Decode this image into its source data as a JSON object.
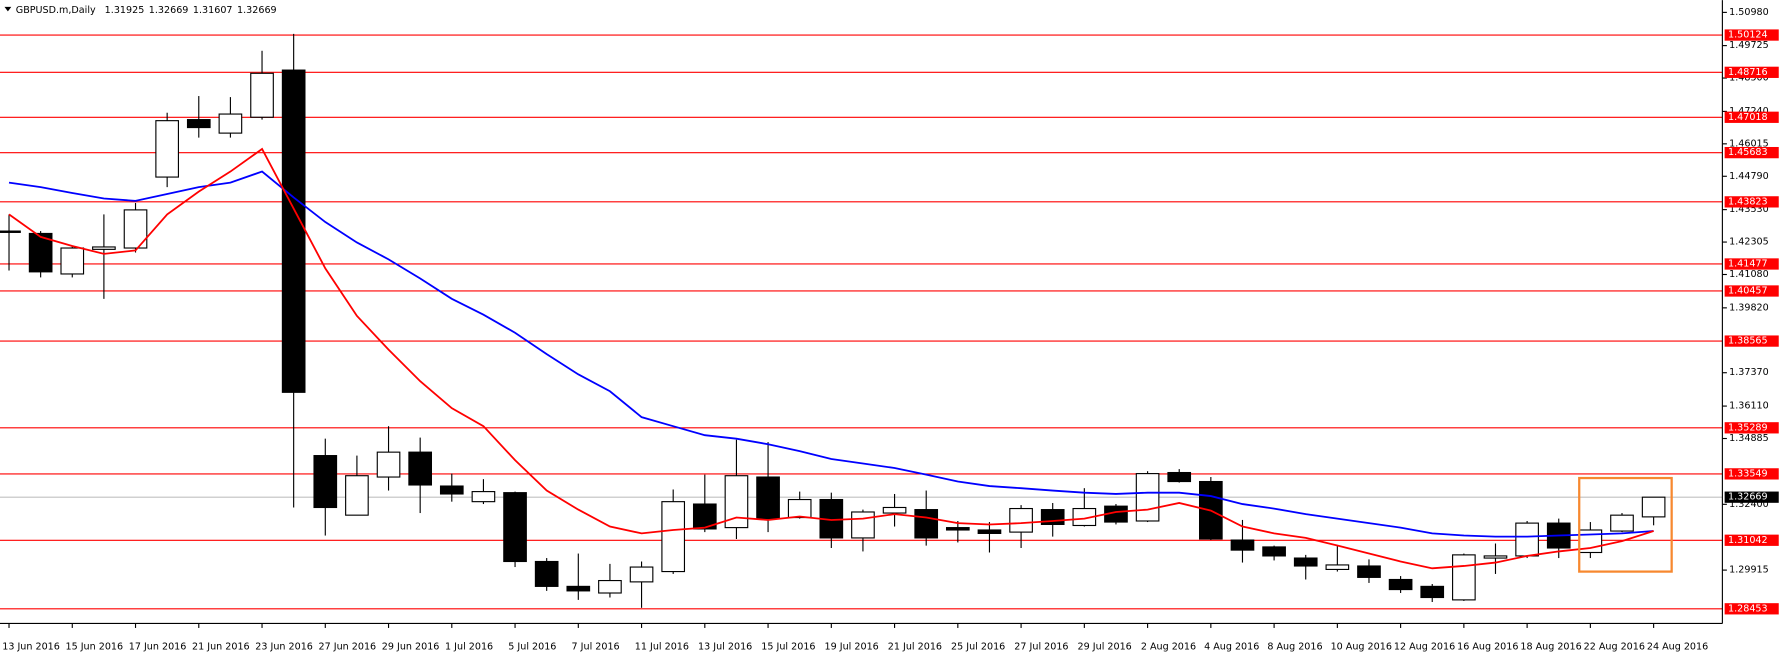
{
  "chart_data": {
    "type": "candlestick",
    "title": "GBPUSD.m,Daily",
    "categories": [
      "13 Jun 2016",
      null,
      "15 Jun 2016",
      null,
      "17 Jun 2016",
      null,
      "21 Jun 2016",
      null,
      "23 Jun 2016",
      null,
      "27 Jun 2016",
      null,
      "29 Jun 2016",
      null,
      "1 Jul 2016",
      null,
      "5 Jul 2016",
      null,
      "7 Jul 2016",
      null,
      "11 Jul 2016",
      null,
      "13 Jul 2016",
      null,
      "15 Jul 2016",
      null,
      "19 Jul 2016",
      null,
      "21 Jul 2016",
      null,
      "25 Jul 2016",
      null,
      "27 Jul 2016",
      null,
      "29 Jul 2016",
      null,
      "2 Aug 2016",
      null,
      "4 Aug 2016",
      null,
      "8 Aug 2016",
      null,
      "10 Aug 2016",
      null,
      "12 Aug 2016",
      null,
      "16 Aug 2016",
      null,
      "18 Aug 2016",
      null,
      "22 Aug 2016",
      null,
      "24 Aug 2016"
    ],
    "open": [
      1.4272,
      1.4263,
      1.411,
      1.4203,
      1.4208,
      1.4476,
      1.4693,
      1.4642,
      1.4702,
      1.488,
      1.3424,
      1.3199,
      1.3343,
      1.3437,
      1.3309,
      1.325,
      1.3284,
      1.3024,
      1.293,
      1.2905,
      1.2947,
      1.2986,
      1.3241,
      1.3152,
      1.3343,
      1.319,
      1.3258,
      1.3113,
      1.3207,
      1.322,
      1.3152,
      1.3143,
      1.3135,
      1.322,
      1.316,
      1.3233,
      1.3177,
      1.336,
      1.3326,
      1.3105,
      1.3079,
      1.3037,
      1.2994,
      1.3007,
      1.2956,
      1.293,
      1.2879,
      1.3037,
      1.3045,
      1.3169,
      1.3058,
      1.3139,
      1.31925
    ],
    "high": [
      1.4335,
      1.4272,
      1.4216,
      1.4335,
      1.4378,
      1.4719,
      1.4782,
      1.4778,
      1.4953,
      1.5017,
      1.3488,
      1.3424,
      1.3535,
      1.3492,
      1.3356,
      1.3335,
      1.3288,
      1.3037,
      1.3054,
      1.3015,
      1.3024,
      1.3296,
      1.3352,
      1.3484,
      1.3475,
      1.3288,
      1.3284,
      1.322,
      1.3279,
      1.3292,
      1.3177,
      1.3173,
      1.3237,
      1.3245,
      1.3301,
      1.3241,
      1.3365,
      1.3373,
      1.3343,
      1.3181,
      1.3084,
      1.3049,
      1.3084,
      1.3032,
      1.2969,
      1.2939,
      1.3054,
      1.3092,
      1.3177,
      1.3186,
      1.3173,
      1.3207,
      1.32669
    ],
    "low": [
      1.4123,
      1.4097,
      1.4097,
      1.4016,
      1.4191,
      1.4438,
      1.4625,
      1.4625,
      1.4693,
      1.3228,
      1.3122,
      1.3199,
      1.3292,
      1.3207,
      1.325,
      1.3241,
      1.3003,
      1.2913,
      1.2879,
      1.2888,
      1.2849,
      1.2977,
      1.3135,
      1.3109,
      1.3135,
      1.3186,
      1.3075,
      1.3062,
      1.3156,
      1.3084,
      1.3096,
      1.3058,
      1.3075,
      1.3118,
      1.3156,
      1.3164,
      1.3173,
      1.3322,
      1.3105,
      1.302,
      1.3028,
      1.2956,
      1.2986,
      1.2943,
      1.2905,
      1.2871,
      1.2875,
      1.2977,
      1.3037,
      1.3037,
      1.3037,
      1.3135,
      1.31607
    ],
    "close": [
      1.4267,
      1.4118,
      1.4208,
      1.4212,
      1.4352,
      1.4689,
      1.4663,
      1.4714,
      1.4868,
      1.3663,
      1.3228,
      1.3348,
      1.3437,
      1.3313,
      1.3279,
      1.3288,
      1.3024,
      1.293,
      1.2913,
      1.2952,
      1.3003,
      1.325,
      1.3147,
      1.3348,
      1.3186,
      1.3258,
      1.3113,
      1.3211,
      1.3228,
      1.3113,
      1.3143,
      1.313,
      1.3224,
      1.3164,
      1.3224,
      1.3173,
      1.3356,
      1.3326,
      1.3109,
      1.3067,
      1.3045,
      1.3007,
      1.3011,
      1.2964,
      1.2918,
      1.2888,
      1.3049,
      1.3045,
      1.3169,
      1.3075,
      1.3143,
      1.3199,
      1.32669
    ],
    "up_color": "#ffffff",
    "down_color": "#000000",
    "lines": [
      {
        "color": "#0000ff",
        "values": [
          1.4455,
          1.4438,
          1.4416,
          1.4395,
          1.4386,
          1.4412,
          1.4438,
          1.4455,
          1.4497,
          1.4399,
          1.4306,
          1.4229,
          1.4165,
          1.4093,
          1.4016,
          1.3956,
          1.3888,
          1.3807,
          1.3731,
          1.3667,
          1.3569,
          1.3535,
          1.3501,
          1.3488,
          1.3467,
          1.3441,
          1.3411,
          1.3394,
          1.3377,
          1.3352,
          1.3326,
          1.3309,
          1.3301,
          1.3292,
          1.3284,
          1.3279,
          1.3284,
          1.3284,
          1.3271,
          1.3241,
          1.3224,
          1.3203,
          1.3186,
          1.3169,
          1.3152,
          1.313,
          1.3122,
          1.3118,
          1.3118,
          1.3122,
          1.3126,
          1.313,
          1.3139
        ]
      },
      {
        "color": "#ff0000",
        "values": [
          1.4335,
          1.425,
          1.4216,
          1.4186,
          1.4199,
          1.4335,
          1.4421,
          1.4497,
          1.4582,
          1.4357,
          1.4131,
          1.3952,
          1.3824,
          1.3705,
          1.3603,
          1.3535,
          1.3407,
          1.3292,
          1.322,
          1.3156,
          1.313,
          1.3143,
          1.3152,
          1.319,
          1.3181,
          1.3194,
          1.3181,
          1.3186,
          1.3203,
          1.319,
          1.3169,
          1.3164,
          1.3169,
          1.3177,
          1.3186,
          1.3211,
          1.322,
          1.3245,
          1.3216,
          1.3156,
          1.313,
          1.3113,
          1.3084,
          1.3054,
          1.3024,
          1.2998,
          1.3007,
          1.302,
          1.3045,
          1.3062,
          1.3075,
          1.3101,
          1.3139
        ]
      }
    ],
    "levels": [
      1.50124,
      1.48716,
      1.47018,
      1.45683,
      1.43823,
      1.41477,
      1.40457,
      1.38565,
      1.35289,
      1.33549,
      1.31042,
      1.28453
    ],
    "level_color": "#ff0000",
    "last_price": 1.32669,
    "ylim": [
      1.279,
      1.51444
    ],
    "yticks": [
      {
        "value": 1.5098,
        "label": "1.50980"
      },
      1.49725,
      {
        "value": 1.485,
        "label": "1.48500"
      },
      {
        "value": 1.4724,
        "label": "1.47240"
      },
      1.46015,
      {
        "value": 1.4479,
        "label": "1.44790"
      },
      {
        "value": 1.4353,
        "label": "1.43530"
      },
      1.42305,
      {
        "value": 1.4108,
        "label": "1.41080"
      },
      {
        "value": 1.3982,
        "label": "1.39820"
      },
      {
        "value": 1.3737,
        "label": "1.37370"
      },
      {
        "value": 1.3611,
        "label": "1.36110"
      },
      1.34885,
      {
        "value": 1.324,
        "label": "1.32400"
      },
      1.29915
    ]
  }
}
